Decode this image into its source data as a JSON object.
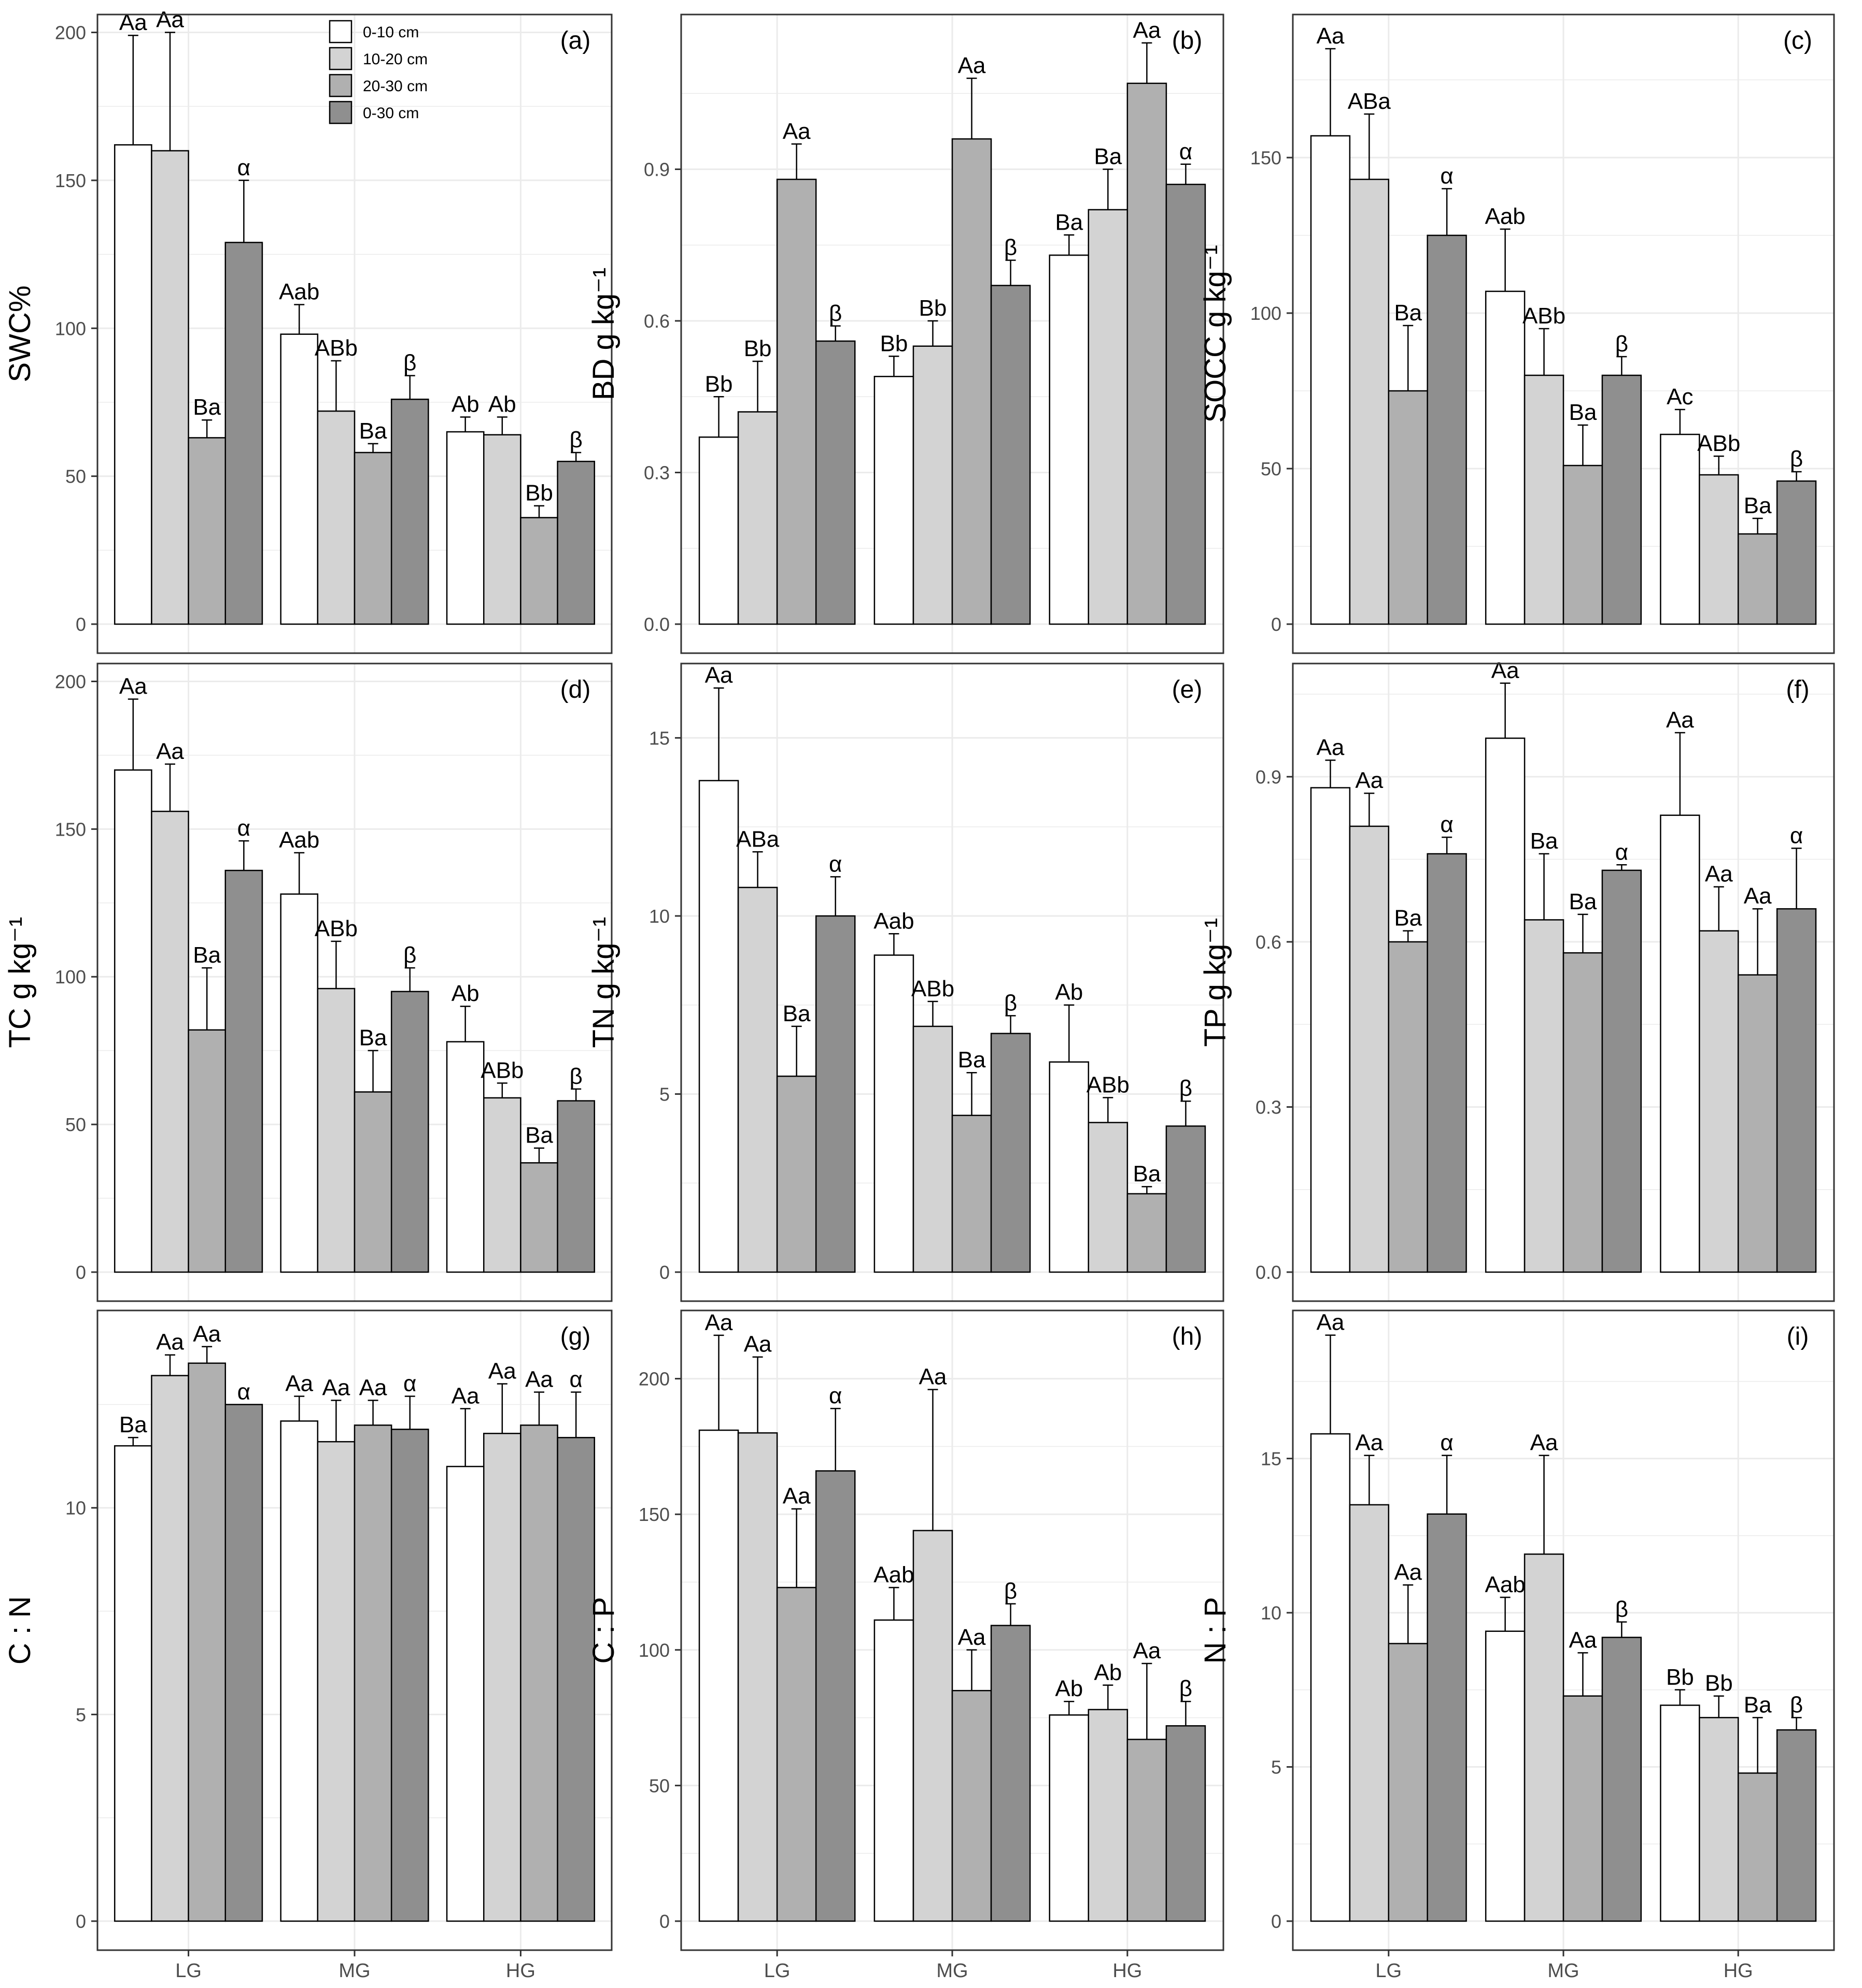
{
  "legend": {
    "items": [
      {
        "label": "0-10 cm",
        "color": "#ffffff"
      },
      {
        "label": "10-20 cm",
        "color": "#d3d3d3"
      },
      {
        "label": "20-30 cm",
        "color": "#b0b0b0"
      },
      {
        "label": "0-30 cm",
        "color": "#8f8f8f"
      }
    ]
  },
  "colors": {
    "bar_fills": [
      "#ffffff",
      "#d3d3d3",
      "#b0b0b0",
      "#8f8f8f"
    ],
    "stroke": "#000000",
    "grid": "#ebebeb",
    "tick_text": "#4d4d4d"
  },
  "chart_data": [
    {
      "type": "bar",
      "panel_label": "(a)",
      "ylabel": "SWC%",
      "categories": [
        "LG",
        "MG",
        "HG"
      ],
      "ylim": [
        0,
        205
      ],
      "yticks": [
        0,
        50,
        100,
        150,
        200
      ],
      "series": [
        {
          "name": "0-10 cm",
          "values": [
            162,
            98,
            65
          ],
          "errors": [
            37,
            10,
            5
          ],
          "labels": [
            "Aa",
            "Aab",
            "Ab"
          ]
        },
        {
          "name": "10-20 cm",
          "values": [
            160,
            72,
            64
          ],
          "errors": [
            40,
            17,
            6
          ],
          "labels": [
            "Aa",
            "ABb",
            "Ab"
          ]
        },
        {
          "name": "20-30 cm",
          "values": [
            63,
            58,
            36
          ],
          "errors": [
            6,
            3,
            4
          ],
          "labels": [
            "Ba",
            "Ba",
            "Bb"
          ]
        },
        {
          "name": "0-30 cm",
          "values": [
            129,
            76,
            55
          ],
          "errors": [
            21,
            8,
            3
          ],
          "labels": [
            "α",
            "β",
            "β"
          ]
        }
      ]
    },
    {
      "type": "bar",
      "panel_label": "(b)",
      "ylabel": "BD g kg⁻¹",
      "categories": [
        "LG",
        "MG",
        "HG"
      ],
      "ylim": [
        0,
        1.2
      ],
      "yticks": [
        0.0,
        0.3,
        0.6,
        0.9
      ],
      "series": [
        {
          "name": "0-10 cm",
          "values": [
            0.37,
            0.49,
            0.73
          ],
          "errors": [
            0.08,
            0.04,
            0.04
          ],
          "labels": [
            "Bb",
            "Bb",
            "Ba"
          ]
        },
        {
          "name": "10-20 cm",
          "values": [
            0.42,
            0.55,
            0.82
          ],
          "errors": [
            0.1,
            0.05,
            0.08
          ],
          "labels": [
            "Bb",
            "Bb",
            "Ba"
          ]
        },
        {
          "name": "20-30 cm",
          "values": [
            0.88,
            0.96,
            1.07
          ],
          "errors": [
            0.07,
            0.12,
            0.08
          ],
          "labels": [
            "Aa",
            "Aa",
            "Aa"
          ]
        },
        {
          "name": "0-30 cm",
          "values": [
            0.56,
            0.67,
            0.87
          ],
          "errors": [
            0.03,
            0.05,
            0.04
          ],
          "labels": [
            "β",
            "β",
            "α"
          ]
        }
      ]
    },
    {
      "type": "bar",
      "panel_label": "(c)",
      "ylabel": "SOCC g kg⁻¹",
      "categories": [
        "LG",
        "MG",
        "HG"
      ],
      "ylim": [
        0,
        195
      ],
      "yticks": [
        0,
        50,
        100,
        150
      ],
      "series": [
        {
          "name": "0-10 cm",
          "values": [
            157,
            107,
            61
          ],
          "errors": [
            28,
            20,
            8
          ],
          "labels": [
            "Aa",
            "Aab",
            "Ac"
          ]
        },
        {
          "name": "10-20 cm",
          "values": [
            143,
            80,
            48
          ],
          "errors": [
            21,
            15,
            6
          ],
          "labels": [
            "ABa",
            "ABb",
            "ABb"
          ]
        },
        {
          "name": "20-30 cm",
          "values": [
            75,
            51,
            29
          ],
          "errors": [
            21,
            13,
            5
          ],
          "labels": [
            "Ba",
            "Ba",
            "Ba"
          ]
        },
        {
          "name": "0-30 cm",
          "values": [
            125,
            80,
            46
          ],
          "errors": [
            15,
            6,
            3
          ],
          "labels": [
            "α",
            "β",
            "β"
          ]
        }
      ]
    },
    {
      "type": "bar",
      "panel_label": "(d)",
      "ylabel": "TC g kg⁻¹",
      "categories": [
        "LG",
        "MG",
        "HG"
      ],
      "ylim": [
        0,
        205
      ],
      "yticks": [
        0,
        50,
        100,
        150,
        200
      ],
      "series": [
        {
          "name": "0-10 cm",
          "values": [
            170,
            128,
            78
          ],
          "errors": [
            24,
            14,
            12
          ],
          "labels": [
            "Aa",
            "Aab",
            "Ab"
          ]
        },
        {
          "name": "10-20 cm",
          "values": [
            156,
            96,
            59
          ],
          "errors": [
            16,
            16,
            5
          ],
          "labels": [
            "Aa",
            "ABb",
            "ABb"
          ]
        },
        {
          "name": "20-30 cm",
          "values": [
            82,
            61,
            37
          ],
          "errors": [
            21,
            14,
            5
          ],
          "labels": [
            "Ba",
            "Ba",
            "Ba"
          ]
        },
        {
          "name": "0-30 cm",
          "values": [
            136,
            95,
            58
          ],
          "errors": [
            10,
            8,
            4
          ],
          "labels": [
            "α",
            "β",
            "β"
          ]
        }
      ]
    },
    {
      "type": "bar",
      "panel_label": "(e)",
      "ylabel": "TN g kg⁻¹",
      "categories": [
        "LG",
        "MG",
        "HG"
      ],
      "ylim": [
        0,
        17
      ],
      "yticks": [
        0,
        5,
        10,
        15
      ],
      "series": [
        {
          "name": "0-10 cm",
          "values": [
            13.8,
            8.9,
            5.9
          ],
          "errors": [
            2.6,
            0.6,
            1.6
          ],
          "labels": [
            "Aa",
            "Aab",
            "Ab"
          ]
        },
        {
          "name": "10-20 cm",
          "values": [
            10.8,
            6.9,
            4.2
          ],
          "errors": [
            1.0,
            0.7,
            0.7
          ],
          "labels": [
            "ABa",
            "ABb",
            "ABb"
          ]
        },
        {
          "name": "20-30 cm",
          "values": [
            5.5,
            4.4,
            2.2
          ],
          "errors": [
            1.4,
            1.2,
            0.2
          ],
          "labels": [
            "Ba",
            "Ba",
            "Ba"
          ]
        },
        {
          "name": "0-30 cm",
          "values": [
            10.0,
            6.7,
            4.1
          ],
          "errors": [
            1.1,
            0.5,
            0.7
          ],
          "labels": [
            "α",
            "β",
            "β"
          ]
        }
      ]
    },
    {
      "type": "bar",
      "panel_label": "(f)",
      "ylabel": "TP g kg⁻¹",
      "categories": [
        "LG",
        "MG",
        "HG"
      ],
      "ylim": [
        0,
        1.1
      ],
      "yticks": [
        0.0,
        0.3,
        0.6,
        0.9
      ],
      "series": [
        {
          "name": "0-10 cm",
          "values": [
            0.88,
            0.97,
            0.83
          ],
          "errors": [
            0.05,
            0.1,
            0.15
          ],
          "labels": [
            "Aa",
            "Aa",
            "Aa"
          ]
        },
        {
          "name": "10-20 cm",
          "values": [
            0.81,
            0.64,
            0.62
          ],
          "errors": [
            0.06,
            0.12,
            0.08
          ],
          "labels": [
            "Aa",
            "Ba",
            "Aa"
          ]
        },
        {
          "name": "20-30 cm",
          "values": [
            0.6,
            0.58,
            0.54
          ],
          "errors": [
            0.02,
            0.07,
            0.12
          ],
          "labels": [
            "Ba",
            "Ba",
            "Aa"
          ]
        },
        {
          "name": "0-30 cm",
          "values": [
            0.76,
            0.73,
            0.66
          ],
          "errors": [
            0.03,
            0.01,
            0.11
          ],
          "labels": [
            "α",
            "α",
            "α"
          ]
        }
      ]
    },
    {
      "type": "bar",
      "panel_label": "(g)",
      "ylabel": "C : N",
      "categories": [
        "LG",
        "MG",
        "HG"
      ],
      "ylim": [
        0,
        14.7
      ],
      "yticks": [
        0,
        5,
        10
      ],
      "series": [
        {
          "name": "0-10 cm",
          "values": [
            11.5,
            12.1,
            11.0
          ],
          "errors": [
            0.2,
            0.6,
            1.4
          ],
          "labels": [
            "Ba",
            "Aa",
            "Aa"
          ]
        },
        {
          "name": "10-20 cm",
          "values": [
            13.2,
            11.6,
            11.8
          ],
          "errors": [
            0.5,
            1.0,
            1.2
          ],
          "labels": [
            "Aa",
            "Aa",
            "Aa"
          ]
        },
        {
          "name": "20-30 cm",
          "values": [
            13.5,
            12.0,
            12.0
          ],
          "errors": [
            0.4,
            0.6,
            0.8
          ],
          "labels": [
            "Aa",
            "Aa",
            "Aa"
          ]
        },
        {
          "name": "0-30 cm",
          "values": [
            12.5,
            11.9,
            11.7
          ],
          "errors": [
            0.0,
            0.8,
            1.1
          ],
          "labels": [
            "α",
            "α",
            "α"
          ]
        }
      ]
    },
    {
      "type": "bar",
      "panel_label": "(h)",
      "ylabel": "C : P",
      "categories": [
        "LG",
        "MG",
        "HG"
      ],
      "ylim": [
        0,
        224
      ],
      "yticks": [
        0,
        50,
        100,
        150,
        200
      ],
      "series": [
        {
          "name": "0-10 cm",
          "values": [
            181,
            111,
            76
          ],
          "errors": [
            35,
            12,
            5
          ],
          "labels": [
            "Aa",
            "Aab",
            "Ab"
          ]
        },
        {
          "name": "10-20 cm",
          "values": [
            180,
            144,
            78
          ],
          "errors": [
            28,
            52,
            9
          ],
          "labels": [
            "Aa",
            "Aa",
            "Ab"
          ]
        },
        {
          "name": "20-30 cm",
          "values": [
            123,
            85,
            67
          ],
          "errors": [
            29,
            15,
            28
          ],
          "labels": [
            "Aa",
            "Aa",
            "Aa"
          ]
        },
        {
          "name": "0-30 cm",
          "values": [
            166,
            109,
            72
          ],
          "errors": [
            23,
            8,
            9
          ],
          "labels": [
            "α",
            "β",
            "β"
          ]
        }
      ]
    },
    {
      "type": "bar",
      "panel_label": "(i)",
      "ylabel": "N : P",
      "categories": [
        "LG",
        "MG",
        "HG"
      ],
      "ylim": [
        0,
        19.7
      ],
      "yticks": [
        0,
        5,
        10,
        15
      ],
      "series": [
        {
          "name": "0-10 cm",
          "values": [
            15.8,
            9.4,
            7.0
          ],
          "errors": [
            3.2,
            1.1,
            0.5
          ],
          "labels": [
            "Aa",
            "Aab",
            "Bb"
          ]
        },
        {
          "name": "10-20 cm",
          "values": [
            13.5,
            11.9,
            6.6
          ],
          "errors": [
            1.6,
            3.2,
            0.7
          ],
          "labels": [
            "Aa",
            "Aa",
            "Bb"
          ]
        },
        {
          "name": "20-30 cm",
          "values": [
            9.0,
            7.3,
            4.8
          ],
          "errors": [
            1.9,
            1.4,
            1.8
          ],
          "labels": [
            "Aa",
            "Aa",
            "Ba"
          ]
        },
        {
          "name": "0-30 cm",
          "values": [
            13.2,
            9.2,
            6.2
          ],
          "errors": [
            1.9,
            0.5,
            0.4
          ],
          "labels": [
            "α",
            "β",
            "β"
          ]
        }
      ]
    }
  ]
}
